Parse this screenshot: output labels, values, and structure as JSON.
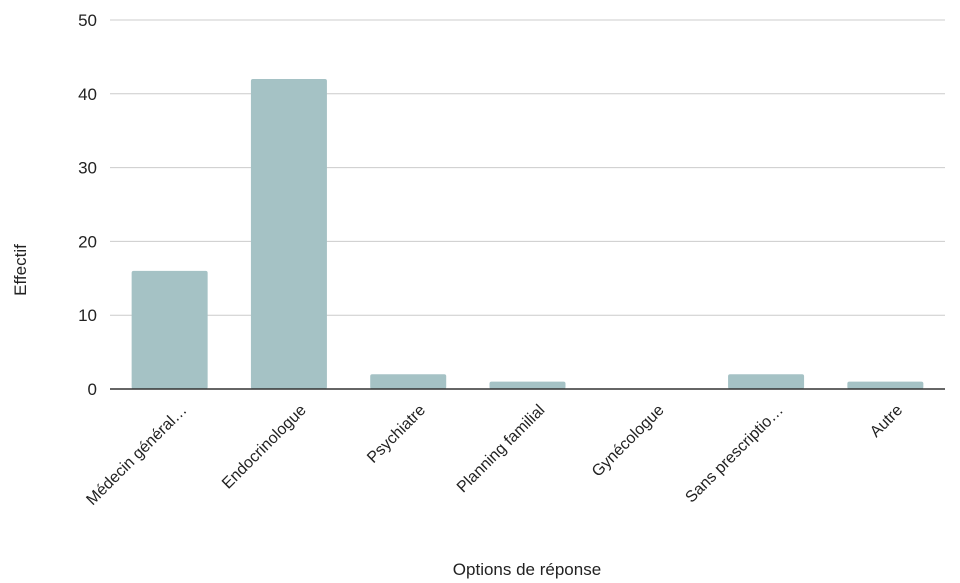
{
  "chart_data": {
    "type": "bar",
    "title": "",
    "xlabel": "Options de réponse",
    "ylabel": "Effectif",
    "categories": [
      "Médecin général…",
      "Endocrinologue",
      "Psychiatre",
      "Planning familial",
      "Gynécologue",
      "Sans prescriptio…",
      "Autre"
    ],
    "values": [
      16,
      42,
      2,
      1,
      0,
      2,
      1
    ],
    "ylim": [
      0,
      50
    ],
    "yticks": [
      0,
      10,
      20,
      30,
      40,
      50
    ],
    "grid": true,
    "legend": "none",
    "bar_color": "#a5c2c5",
    "grid_color": "#cccccc",
    "axis_color": "#333333"
  }
}
